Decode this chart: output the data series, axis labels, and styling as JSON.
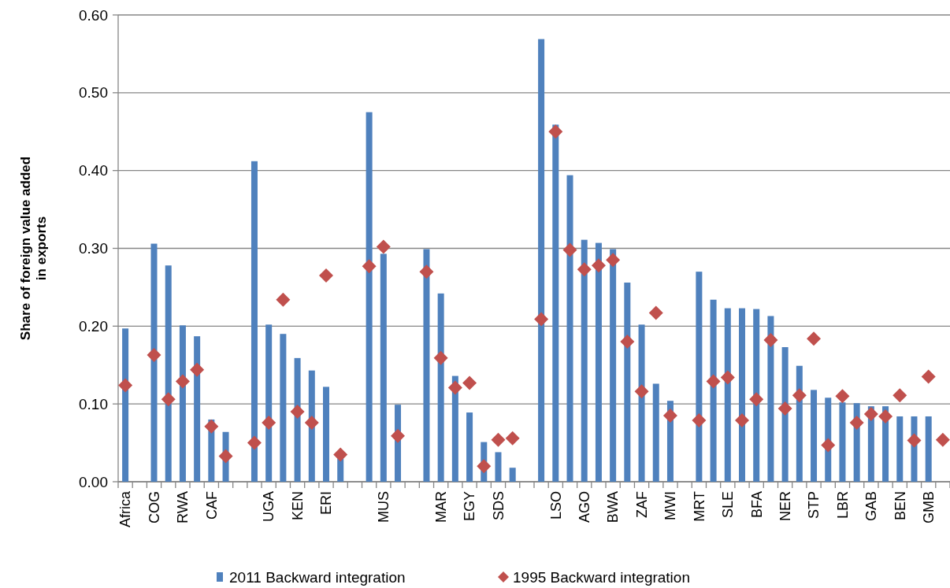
{
  "chart_data": {
    "type": "bar",
    "ylabel": "Share of foreign value added\nin exports",
    "categories": [
      "Africa",
      null,
      "COG",
      null,
      "RWA",
      null,
      "CAF",
      null,
      null,
      null,
      "UGA",
      null,
      "KEN",
      null,
      "ERI",
      null,
      null,
      null,
      "MUS",
      null,
      null,
      null,
      "MAR",
      null,
      "EGY",
      null,
      "SDS",
      null,
      null,
      null,
      "LSO",
      null,
      "AGO",
      null,
      "BWA",
      null,
      "ZAF",
      null,
      "MWI",
      null,
      "MRT",
      null,
      "SLE",
      null,
      "BFA",
      null,
      "NER",
      null,
      "STP",
      null,
      "LBR",
      null,
      "GAB",
      null,
      "BEN",
      null,
      "GMB",
      null
    ],
    "series": [
      {
        "name": "2011 Backward integration",
        "color": "#4f81bd",
        "values": [
          0.197,
          null,
          0.306,
          0.278,
          0.201,
          0.187,
          0.08,
          0.064,
          null,
          0.412,
          0.202,
          0.19,
          0.159,
          0.143,
          0.122,
          0.03,
          null,
          0.475,
          0.293,
          0.099,
          null,
          0.299,
          0.242,
          0.136,
          0.089,
          0.051,
          0.038,
          0.018,
          null,
          0.569,
          0.459,
          0.394,
          0.311,
          0.307,
          0.299,
          0.256,
          0.202,
          0.126,
          0.104,
          null,
          0.27,
          0.234,
          0.223,
          0.223,
          0.222,
          0.213,
          0.173,
          0.149,
          0.118,
          0.108,
          0.102,
          0.101,
          0.097,
          0.097,
          0.084,
          0.084,
          0.084,
          null
        ]
      },
      {
        "name": "1995 Backward integration",
        "type": "scatter",
        "marker": "diamond",
        "color": "#c0504d",
        "values": [
          0.124,
          null,
          0.163,
          0.106,
          0.129,
          0.144,
          0.071,
          0.033,
          null,
          0.05,
          0.076,
          0.234,
          0.09,
          0.076,
          0.265,
          0.035,
          null,
          0.277,
          0.302,
          0.059,
          null,
          0.27,
          0.159,
          0.121,
          0.127,
          0.02,
          0.054,
          0.056,
          null,
          0.209,
          0.45,
          0.298,
          0.273,
          0.278,
          0.285,
          0.18,
          0.116,
          0.217,
          0.085,
          null,
          0.079,
          0.129,
          0.134,
          0.079,
          0.106,
          0.182,
          0.094,
          0.111,
          0.184,
          0.047,
          0.11,
          0.076,
          0.087,
          0.084,
          0.111,
          0.053,
          0.135,
          0.054
        ]
      }
    ],
    "ylim": [
      0,
      0.6
    ],
    "yticks": [
      {
        "value": 0,
        "label": "0.00"
      },
      {
        "value": 0.1,
        "label": "0.10"
      },
      {
        "value": 0.2,
        "label": "0.20"
      },
      {
        "value": 0.3,
        "label": "0.30"
      },
      {
        "value": 0.4,
        "label": "0.40"
      },
      {
        "value": 0.5,
        "label": "0.50"
      },
      {
        "value": 0.6,
        "label": "0.60"
      }
    ],
    "grid": "y",
    "legend": "bottom"
  }
}
